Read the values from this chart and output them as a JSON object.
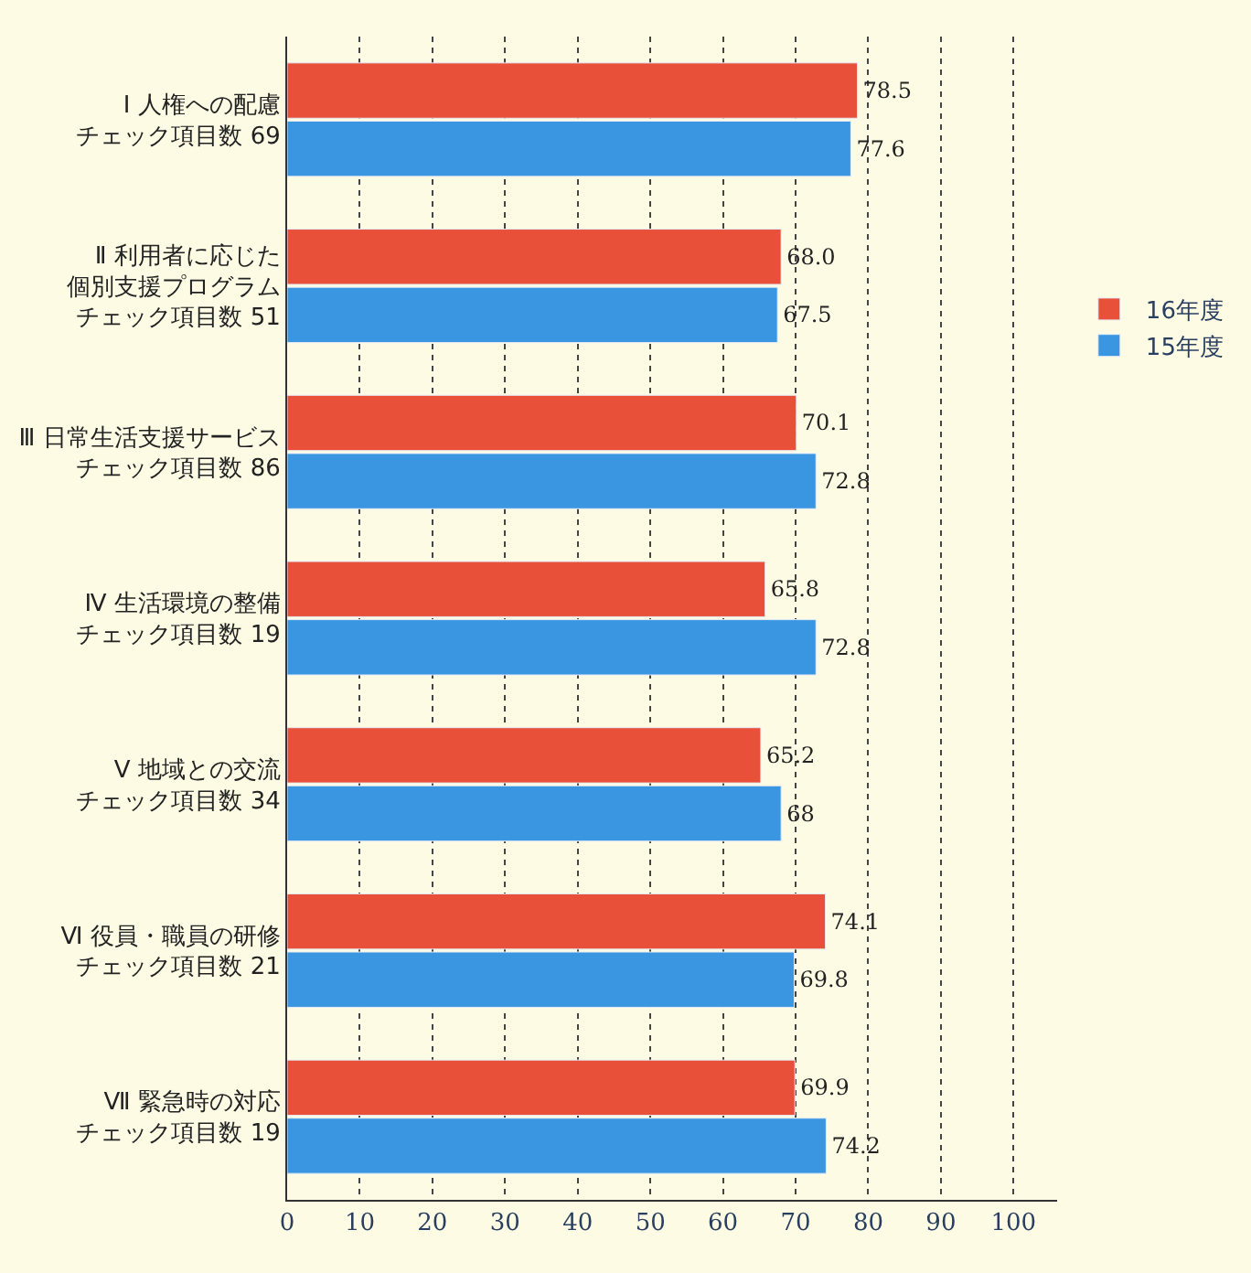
{
  "chart_data": {
    "type": "bar",
    "orientation": "horizontal",
    "categories": [
      "Ⅰ 人権への配慮チェック項目数 69",
      "Ⅱ 利用者に応じた個別支援プログラムチェック項目数 51",
      "Ⅲ 日常生活支援サービスチェック項目数 86",
      "Ⅳ 生活環境の整備チェック項目数 19",
      "Ⅴ 地域との交流チェック項目数 34",
      "Ⅵ 役員・職員の研修チェック項目数 21",
      "Ⅶ 緊急時の対応チェック項目数 19"
    ],
    "series": [
      {
        "name": "16年度",
        "color": "#e8503a",
        "values": [
          78.5,
          68.0,
          70.1,
          65.8,
          65.2,
          74.1,
          69.9
        ],
        "value_labels": [
          "78.5",
          "68.0",
          "70.1",
          "65.8",
          "65.2",
          "74.1",
          "69.9"
        ]
      },
      {
        "name": "15年度",
        "color": "#3a96e0",
        "values": [
          77.6,
          67.5,
          72.8,
          72.8,
          68,
          69.8,
          74.2
        ],
        "value_labels": [
          "77.6",
          "67.5",
          "72.8",
          "72.8",
          "68",
          "69.8",
          "74.2"
        ]
      }
    ],
    "xlim": [
      0,
      106
    ],
    "xticks": [
      0,
      10,
      20,
      30,
      40,
      50,
      60,
      70,
      80,
      90,
      100
    ],
    "grid": "x",
    "legend": "right"
  }
}
